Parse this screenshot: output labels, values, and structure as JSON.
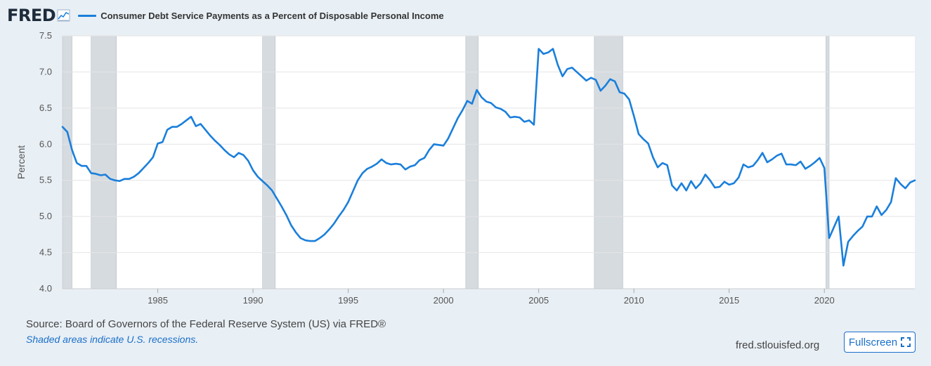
{
  "header": {
    "logo": "FRED",
    "title": "Consumer Debt Service Payments as a Percent of Disposable Personal Income"
  },
  "footer": {
    "source": "Source: Board of Governors of the Federal Reserve System (US) via FRED®",
    "note": "Shaded areas indicate U.S. recessions.",
    "url": "fred.stlouisfed.org",
    "fullscreen_label": "Fullscreen"
  },
  "colors": {
    "series": "#1a7fdb",
    "recession": "#d6dbe0",
    "plot_bg": "#ffffff",
    "grid": "#e4e4e4"
  },
  "chart_data": {
    "type": "line",
    "title": "Consumer Debt Service Payments as a Percent of Disposable Personal Income",
    "xlabel": "",
    "ylabel": "Percent",
    "xlim": [
      1980.0,
      2024.75
    ],
    "ylim": [
      4.0,
      7.5
    ],
    "yticks": [
      "4.0",
      "4.5",
      "5.0",
      "5.5",
      "6.0",
      "6.5",
      "7.0",
      "7.5"
    ],
    "xticks": [
      "1985",
      "1990",
      "1995",
      "2000",
      "2005",
      "2010",
      "2015",
      "2020"
    ],
    "grid": "horizontal",
    "recessions": [
      [
        1980.0,
        1980.5
      ],
      [
        1981.5,
        1982.83
      ],
      [
        1990.5,
        1991.17
      ],
      [
        2001.17,
        2001.83
      ],
      [
        2007.92,
        2009.42
      ],
      [
        2020.08,
        2020.25
      ]
    ],
    "series": [
      {
        "name": "Consumer Debt Service Payments as a Percent of Disposable Personal Income",
        "x": [
          1980.0,
          1980.25,
          1980.5,
          1980.75,
          1981.0,
          1981.25,
          1981.5,
          1981.75,
          1982.0,
          1982.25,
          1982.5,
          1982.75,
          1983.0,
          1983.25,
          1983.5,
          1983.75,
          1984.0,
          1984.25,
          1984.5,
          1984.75,
          1985.0,
          1985.25,
          1985.5,
          1985.75,
          1986.0,
          1986.25,
          1986.5,
          1986.75,
          1987.0,
          1987.25,
          1987.5,
          1987.75,
          1988.0,
          1988.25,
          1988.5,
          1988.75,
          1989.0,
          1989.25,
          1989.5,
          1989.75,
          1990.0,
          1990.25,
          1990.5,
          1990.75,
          1991.0,
          1991.25,
          1991.5,
          1991.75,
          1992.0,
          1992.25,
          1992.5,
          1992.75,
          1993.0,
          1993.25,
          1993.5,
          1993.75,
          1994.0,
          1994.25,
          1994.5,
          1994.75,
          1995.0,
          1995.25,
          1995.5,
          1995.75,
          1996.0,
          1996.25,
          1996.5,
          1996.75,
          1997.0,
          1997.25,
          1997.5,
          1997.75,
          1998.0,
          1998.25,
          1998.5,
          1998.75,
          1999.0,
          1999.25,
          1999.5,
          1999.75,
          2000.0,
          2000.25,
          2000.5,
          2000.75,
          2001.0,
          2001.25,
          2001.5,
          2001.75,
          2002.0,
          2002.25,
          2002.5,
          2002.75,
          2003.0,
          2003.25,
          2003.5,
          2003.75,
          2004.0,
          2004.25,
          2004.5,
          2004.75,
          2005.0,
          2005.25,
          2005.5,
          2005.75,
          2006.0,
          2006.25,
          2006.5,
          2006.75,
          2007.0,
          2007.25,
          2007.5,
          2007.75,
          2008.0,
          2008.25,
          2008.5,
          2008.75,
          2009.0,
          2009.25,
          2009.5,
          2009.75,
          2010.0,
          2010.25,
          2010.5,
          2010.75,
          2011.0,
          2011.25,
          2011.5,
          2011.75,
          2012.0,
          2012.25,
          2012.5,
          2012.75,
          2013.0,
          2013.25,
          2013.5,
          2013.75,
          2014.0,
          2014.25,
          2014.5,
          2014.75,
          2015.0,
          2015.25,
          2015.5,
          2015.75,
          2016.0,
          2016.25,
          2016.5,
          2016.75,
          2017.0,
          2017.25,
          2017.5,
          2017.75,
          2018.0,
          2018.25,
          2018.5,
          2018.75,
          2019.0,
          2019.25,
          2019.5,
          2019.75,
          2020.0,
          2020.25,
          2020.5,
          2020.75,
          2021.0,
          2021.25,
          2021.5,
          2021.75,
          2022.0,
          2022.25,
          2022.5,
          2022.75,
          2023.0,
          2023.25,
          2023.5,
          2023.75,
          2024.0,
          2024.25,
          2024.5,
          2024.75
        ],
        "values": [
          6.24,
          6.17,
          5.92,
          5.74,
          5.7,
          5.7,
          5.6,
          5.59,
          5.57,
          5.58,
          5.52,
          5.5,
          5.49,
          5.52,
          5.52,
          5.55,
          5.6,
          5.67,
          5.74,
          5.82,
          6.01,
          6.03,
          6.2,
          6.24,
          6.24,
          6.28,
          6.33,
          6.38,
          6.25,
          6.28,
          6.2,
          6.12,
          6.05,
          5.99,
          5.92,
          5.86,
          5.82,
          5.88,
          5.85,
          5.77,
          5.64,
          5.55,
          5.49,
          5.43,
          5.36,
          5.25,
          5.14,
          5.02,
          4.88,
          4.78,
          4.7,
          4.67,
          4.66,
          4.66,
          4.7,
          4.75,
          4.82,
          4.9,
          5.0,
          5.09,
          5.2,
          5.35,
          5.5,
          5.6,
          5.66,
          5.69,
          5.73,
          5.79,
          5.74,
          5.72,
          5.73,
          5.72,
          5.65,
          5.69,
          5.71,
          5.78,
          5.81,
          5.92,
          6.0,
          5.99,
          5.98,
          6.08,
          6.22,
          6.36,
          6.47,
          6.6,
          6.56,
          6.75,
          6.65,
          6.59,
          6.57,
          6.51,
          6.49,
          6.45,
          6.37,
          6.38,
          6.37,
          6.31,
          6.33,
          6.27,
          7.32,
          7.25,
          7.27,
          7.32,
          7.1,
          6.94,
          7.04,
          7.06,
          7.0,
          6.94,
          6.88,
          6.92,
          6.89,
          6.74,
          6.81,
          6.9,
          6.87,
          6.72,
          6.7,
          6.62,
          6.39,
          6.14,
          6.07,
          6.01,
          5.82,
          5.68,
          5.74,
          5.71,
          5.43,
          5.36,
          5.46,
          5.36,
          5.49,
          5.39,
          5.46,
          5.58,
          5.5,
          5.4,
          5.41,
          5.48,
          5.44,
          5.46,
          5.54,
          5.72,
          5.68,
          5.7,
          5.78,
          5.88,
          5.75,
          5.79,
          5.84,
          5.87,
          5.72,
          5.72,
          5.71,
          5.76,
          5.66,
          5.7,
          5.75,
          5.81,
          5.67,
          4.7,
          4.85,
          5.0,
          4.32,
          4.65,
          4.73,
          4.8,
          4.86,
          5.0,
          5.0,
          5.14,
          5.02,
          5.09,
          5.2,
          5.53,
          5.45,
          5.39,
          5.47,
          5.5
        ]
      }
    ]
  }
}
